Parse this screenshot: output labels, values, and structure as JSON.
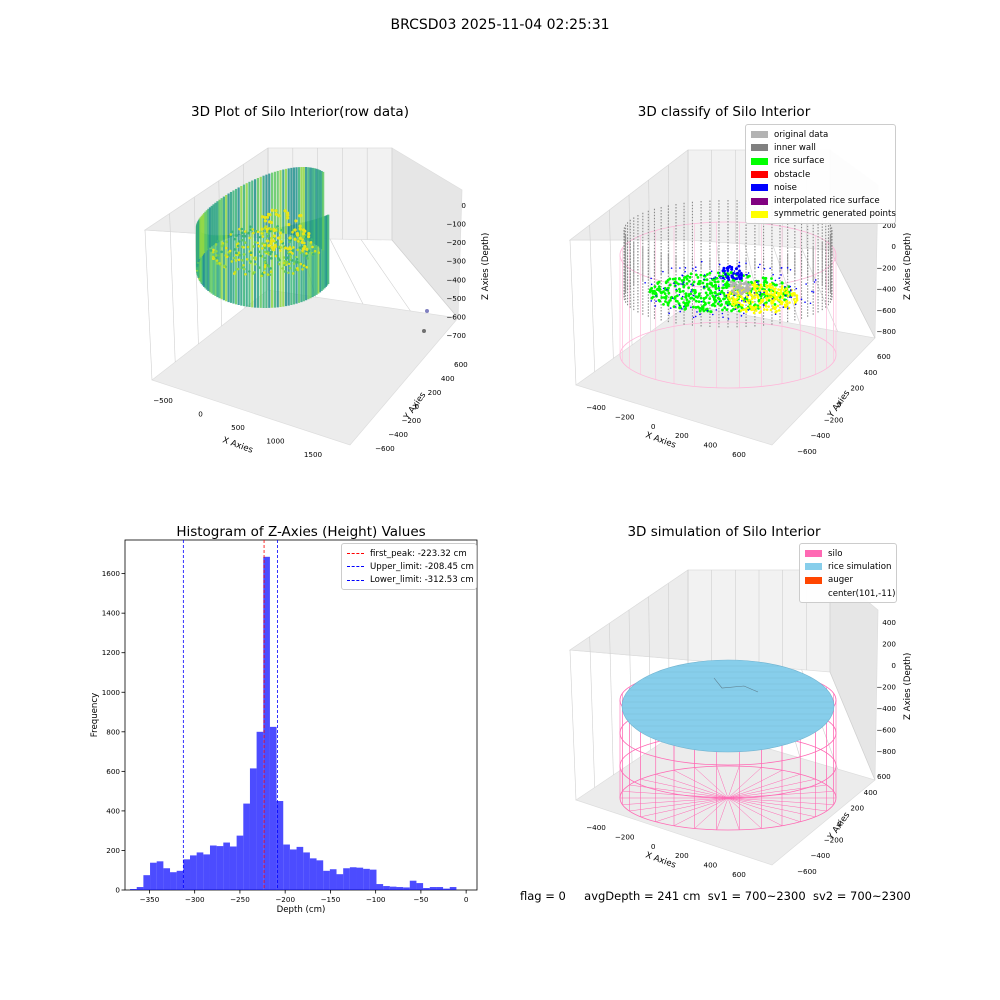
{
  "figure": {
    "suptitle": "BRCSD03 2025-11-04 02:25:31",
    "footer": {
      "flag": "flag = 0",
      "avg_depth": "avgDepth = 241 cm",
      "sv1": "sv1 = 700~2300",
      "sv2": "sv2 = 700~2300"
    }
  },
  "chart_data": [
    {
      "type": "scatter",
      "projection": "3d",
      "title": "3D Plot of Silo Interior(row data)",
      "xlabel": "X Axies",
      "ylabel": "Y Axies",
      "zlabel": "Z Axies (Depth)",
      "x_ticks": [
        "−500",
        "0",
        "500",
        "1000",
        "1500"
      ],
      "y_ticks": [
        "−600",
        "−400",
        "−200",
        "0",
        "200",
        "400",
        "600"
      ],
      "z_ticks": [
        "0",
        "−100",
        "−200",
        "−300",
        "−400",
        "−500",
        "−600",
        "−700"
      ],
      "colormap": "viridis",
      "legend": null
    },
    {
      "type": "scatter",
      "projection": "3d",
      "title": "3D classify of Silo Interior",
      "xlabel": "X Axies",
      "ylabel": "Y Axies",
      "zlabel": "Z Axies (Depth)",
      "x_ticks": [
        "−400",
        "−200",
        "0",
        "200",
        "400",
        "600"
      ],
      "y_ticks": [
        "−600",
        "−400",
        "−200",
        "0",
        "200",
        "400",
        "600"
      ],
      "z_ticks": [
        "200",
        "0",
        "−200",
        "−400",
        "−600",
        "−800"
      ],
      "legend_position": "upper right",
      "series": [
        {
          "name": "original data",
          "color": "#b3b3b3"
        },
        {
          "name": "inner wall",
          "color": "#808080"
        },
        {
          "name": "rice surface",
          "color": "#00ff00"
        },
        {
          "name": "obstacle",
          "color": "#ff0000"
        },
        {
          "name": "noise",
          "color": "#0000ff"
        },
        {
          "name": "interpolated rice surface",
          "color": "#800080"
        },
        {
          "name": "symmetric generated points",
          "color": "#ffff00"
        }
      ]
    },
    {
      "type": "bar",
      "subtype": "histogram",
      "title": "Histogram of Z-Axies (Height) Values",
      "xlabel": "Depth (cm)",
      "ylabel": "Frequency",
      "xlim": [
        -377,
        12
      ],
      "ylim": [
        0,
        1770
      ],
      "x_ticks": [
        -350,
        -300,
        -250,
        -200,
        -150,
        -100,
        -50,
        0
      ],
      "y_ticks": [
        0,
        200,
        400,
        600,
        800,
        1000,
        1200,
        1400,
        1600
      ],
      "bar_color": "#0000ff",
      "bar_alpha": 0.7,
      "bin_start": -371.4,
      "bin_width": 7.36,
      "values": [
        5,
        15,
        75,
        138,
        145,
        110,
        90,
        97,
        155,
        175,
        190,
        180,
        225,
        222,
        240,
        220,
        275,
        437,
        615,
        800,
        1685,
        825,
        450,
        230,
        205,
        218,
        190,
        160,
        150,
        97,
        105,
        80,
        110,
        115,
        113,
        107,
        103,
        30,
        20,
        17,
        15,
        13,
        47,
        35,
        10,
        15,
        15,
        7,
        15
      ],
      "lines": [
        {
          "name": "first_peak: -223.32 cm",
          "x": -223.32,
          "color": "#ff0000"
        },
        {
          "name": "Upper_limit: -208.45 cm",
          "x": -208.45,
          "color": "#0000ff"
        },
        {
          "name": "Lower_limit: -312.53 cm",
          "x": -312.53,
          "color": "#0000ff"
        }
      ],
      "legend_position": "upper right"
    },
    {
      "type": "scatter",
      "projection": "3d",
      "title": "3D simulation of Silo Interior",
      "xlabel": "X Axies",
      "ylabel": "Y Axies",
      "zlabel": "Z Axies (Depth)",
      "x_ticks": [
        "−400",
        "−200",
        "0",
        "200",
        "400",
        "600"
      ],
      "y_ticks": [
        "−600",
        "−400",
        "−200",
        "0",
        "200",
        "400",
        "600"
      ],
      "z_ticks": [
        "400",
        "200",
        "0",
        "−200",
        "−400",
        "−600",
        "−800"
      ],
      "legend_position": "upper right",
      "series": [
        {
          "name": "silo",
          "color": "#ff69b4"
        },
        {
          "name": "rice simulation",
          "color": "#87ceeb"
        },
        {
          "name": "auger",
          "color": "#ff4500"
        },
        {
          "name": "center(101,-11)",
          "color": null
        }
      ]
    }
  ]
}
